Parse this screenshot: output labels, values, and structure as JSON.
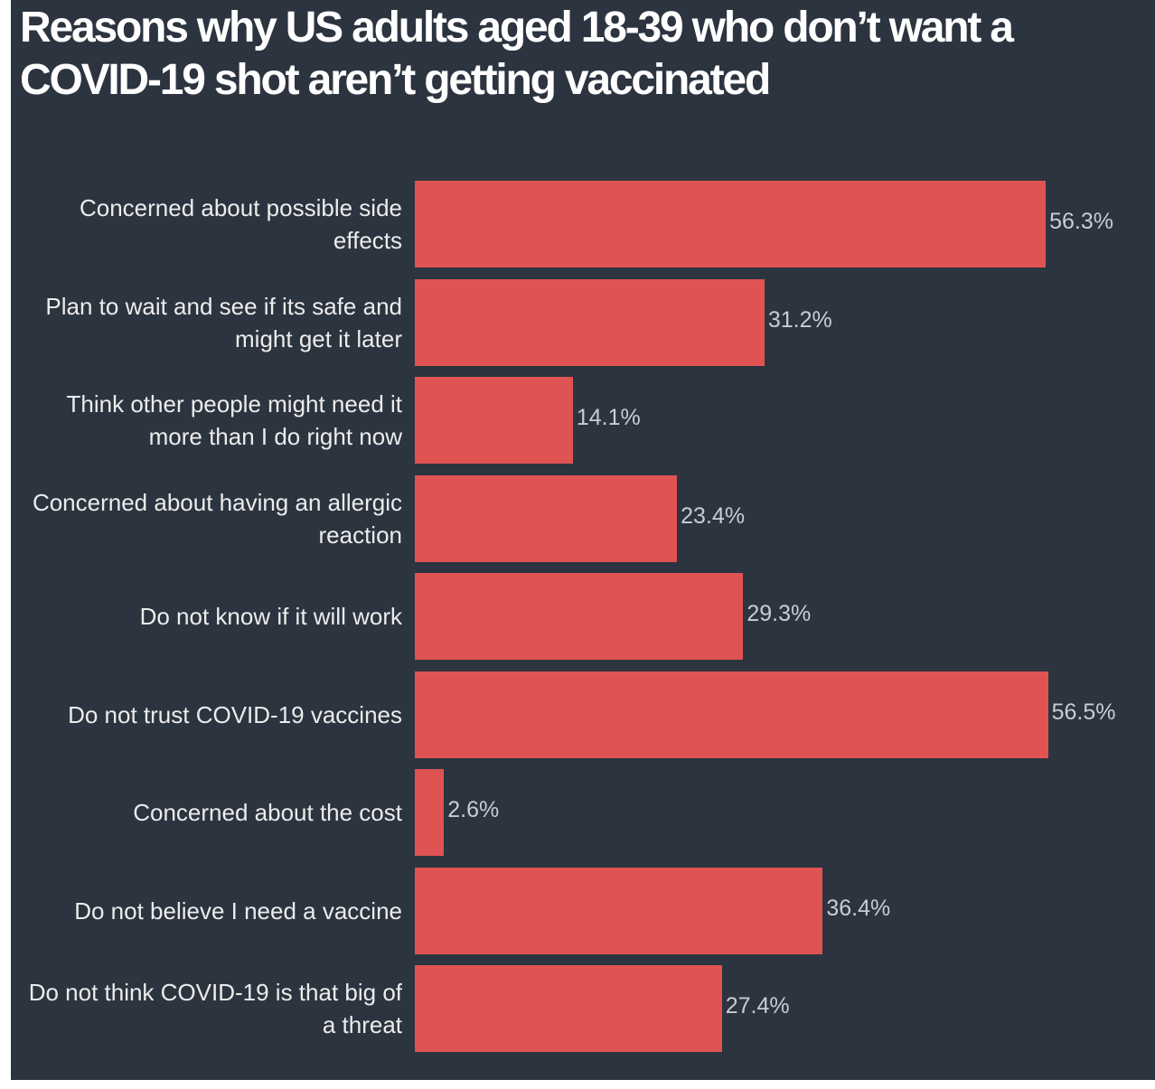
{
  "chart_data": {
    "type": "bar",
    "orientation": "horizontal",
    "title": "Reasons why US adults aged 18-39 who don’t want a COVID-19 shot aren’t getting vaccinated",
    "categories": [
      "Concerned about possible side effects",
      "Plan to wait and see if its safe and might get it later",
      "Think other people might need it more than I do right now",
      "Concerned about having an allergic reaction",
      "Do not know if it will work",
      "Do not trust COVID-19 vaccines",
      "Concerned about the cost",
      "Do not believe I need a vaccine",
      "Do not think COVID-19 is that big of a threat"
    ],
    "values": [
      56.3,
      31.2,
      14.1,
      23.4,
      29.3,
      56.5,
      2.6,
      36.4,
      27.4
    ],
    "value_labels": [
      "56.3%",
      "31.2%",
      "14.1%",
      "23.4%",
      "29.3%",
      "56.5%",
      "2.6%",
      "36.4%",
      "27.4%"
    ],
    "color": "#e05353"
  }
}
